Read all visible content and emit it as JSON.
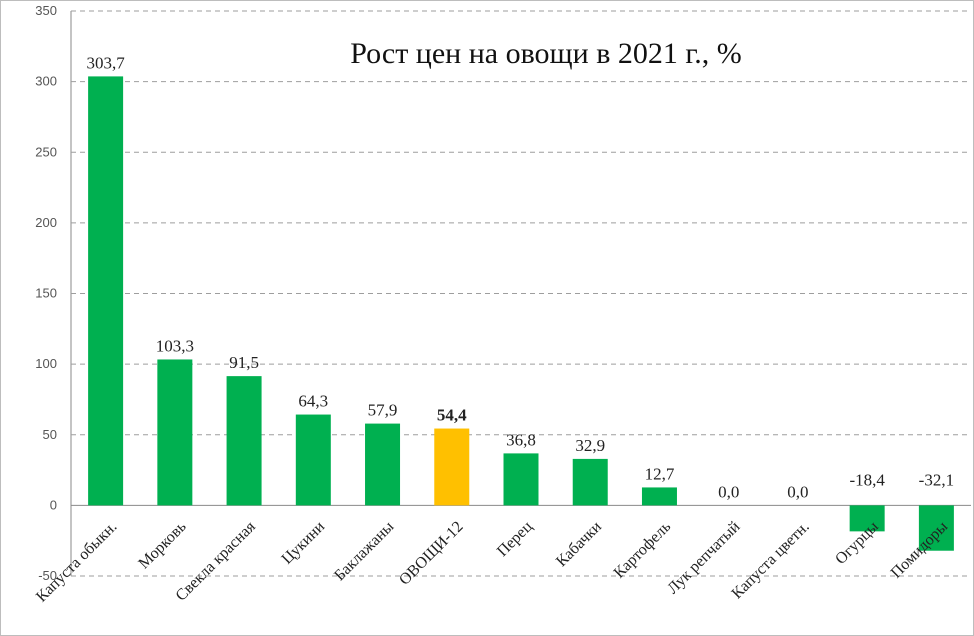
{
  "chart_data": {
    "type": "bar",
    "title": "Рост цен на овощи в 2021 г., %",
    "xlabel": "",
    "ylabel": "",
    "ylim": [
      -50,
      350
    ],
    "yticks": [
      -50,
      0,
      50,
      100,
      150,
      200,
      250,
      300,
      350
    ],
    "grid": true,
    "categories": [
      "Капуста обыкн.",
      "Морковь",
      "Свекла красная",
      "Цукини",
      "Баклажаны",
      "ОВОЩИ-12",
      "Перец",
      "Кабачки",
      "Картофель",
      "Лук репчатый",
      "Капуста цветн.",
      "Огурцы",
      "Помидоры"
    ],
    "values": [
      303.7,
      103.3,
      91.5,
      64.3,
      57.9,
      54.4,
      36.8,
      32.9,
      12.7,
      0.0,
      0.0,
      -18.4,
      -32.1
    ],
    "value_labels": [
      "303,7",
      "103,3",
      "91,5",
      "64,3",
      "57,9",
      "54,4",
      "36,8",
      "32,9",
      "12,7",
      "0,0",
      "0,0",
      "-18,4",
      "-32,1"
    ],
    "bold_labels": [
      false,
      false,
      false,
      false,
      false,
      true,
      false,
      false,
      false,
      false,
      false,
      false,
      false
    ],
    "bar_colors": [
      "#00b050",
      "#00b050",
      "#00b050",
      "#00b050",
      "#00b050",
      "#ffc000",
      "#00b050",
      "#00b050",
      "#00b050",
      "#00b050",
      "#00b050",
      "#00b050",
      "#00b050"
    ]
  }
}
